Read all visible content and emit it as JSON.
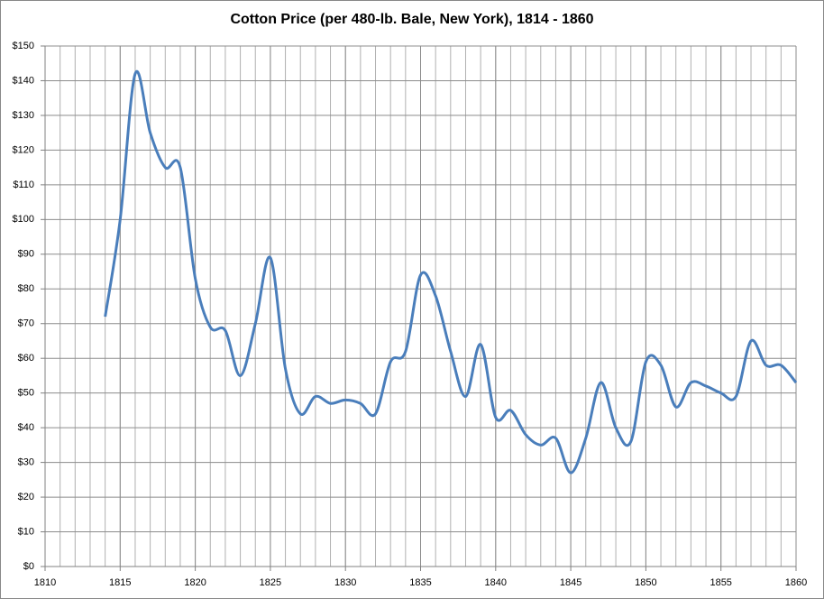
{
  "chart_data": {
    "type": "line",
    "title": "Cotton Price (per 480-lb. Bale, New York), 1814 - 1860",
    "x": [
      1814,
      1815,
      1816,
      1817,
      1818,
      1819,
      1820,
      1821,
      1822,
      1823,
      1824,
      1825,
      1826,
      1827,
      1828,
      1829,
      1830,
      1831,
      1832,
      1833,
      1834,
      1835,
      1836,
      1837,
      1838,
      1839,
      1840,
      1841,
      1842,
      1843,
      1844,
      1845,
      1846,
      1847,
      1848,
      1849,
      1850,
      1851,
      1852,
      1853,
      1854,
      1855,
      1856,
      1857,
      1858,
      1859,
      1860
    ],
    "values": [
      72,
      100,
      142,
      125,
      115,
      115,
      83,
      69,
      68,
      55,
      70,
      89,
      57,
      44,
      49,
      47,
      48,
      47,
      44,
      59,
      62,
      84,
      78,
      62,
      49,
      64,
      43,
      45,
      38,
      35,
      37,
      27,
      37,
      53,
      40,
      36,
      59,
      58,
      46,
      53,
      52,
      50,
      49,
      65,
      58,
      58,
      53
    ],
    "color": "#4a7ebb",
    "xlim": [
      1810,
      1860
    ],
    "xticks": [
      1810,
      1815,
      1820,
      1825,
      1830,
      1835,
      1840,
      1845,
      1850,
      1855,
      1860
    ],
    "ylim": [
      0,
      150
    ],
    "yticks": [
      {
        "value": 0,
        "label": "$0"
      },
      {
        "value": 10,
        "label": "$10"
      },
      {
        "value": 20,
        "label": "$20"
      },
      {
        "value": 30,
        "label": "$30"
      },
      {
        "value": 40,
        "label": "$40"
      },
      {
        "value": 50,
        "label": "$50"
      },
      {
        "value": 60,
        "label": "$60"
      },
      {
        "value": 70,
        "label": "$70"
      },
      {
        "value": 80,
        "label": "$80"
      },
      {
        "value": 90,
        "label": "$90"
      },
      {
        "value": 100,
        "label": "$100"
      },
      {
        "value": 110,
        "label": "$110"
      },
      {
        "value": 120,
        "label": "$120"
      },
      {
        "value": 130,
        "label": "$130"
      },
      {
        "value": 140,
        "label": "$140"
      },
      {
        "value": 150,
        "label": "$150"
      }
    ],
    "grid": true,
    "minor_grid_step": 1
  }
}
